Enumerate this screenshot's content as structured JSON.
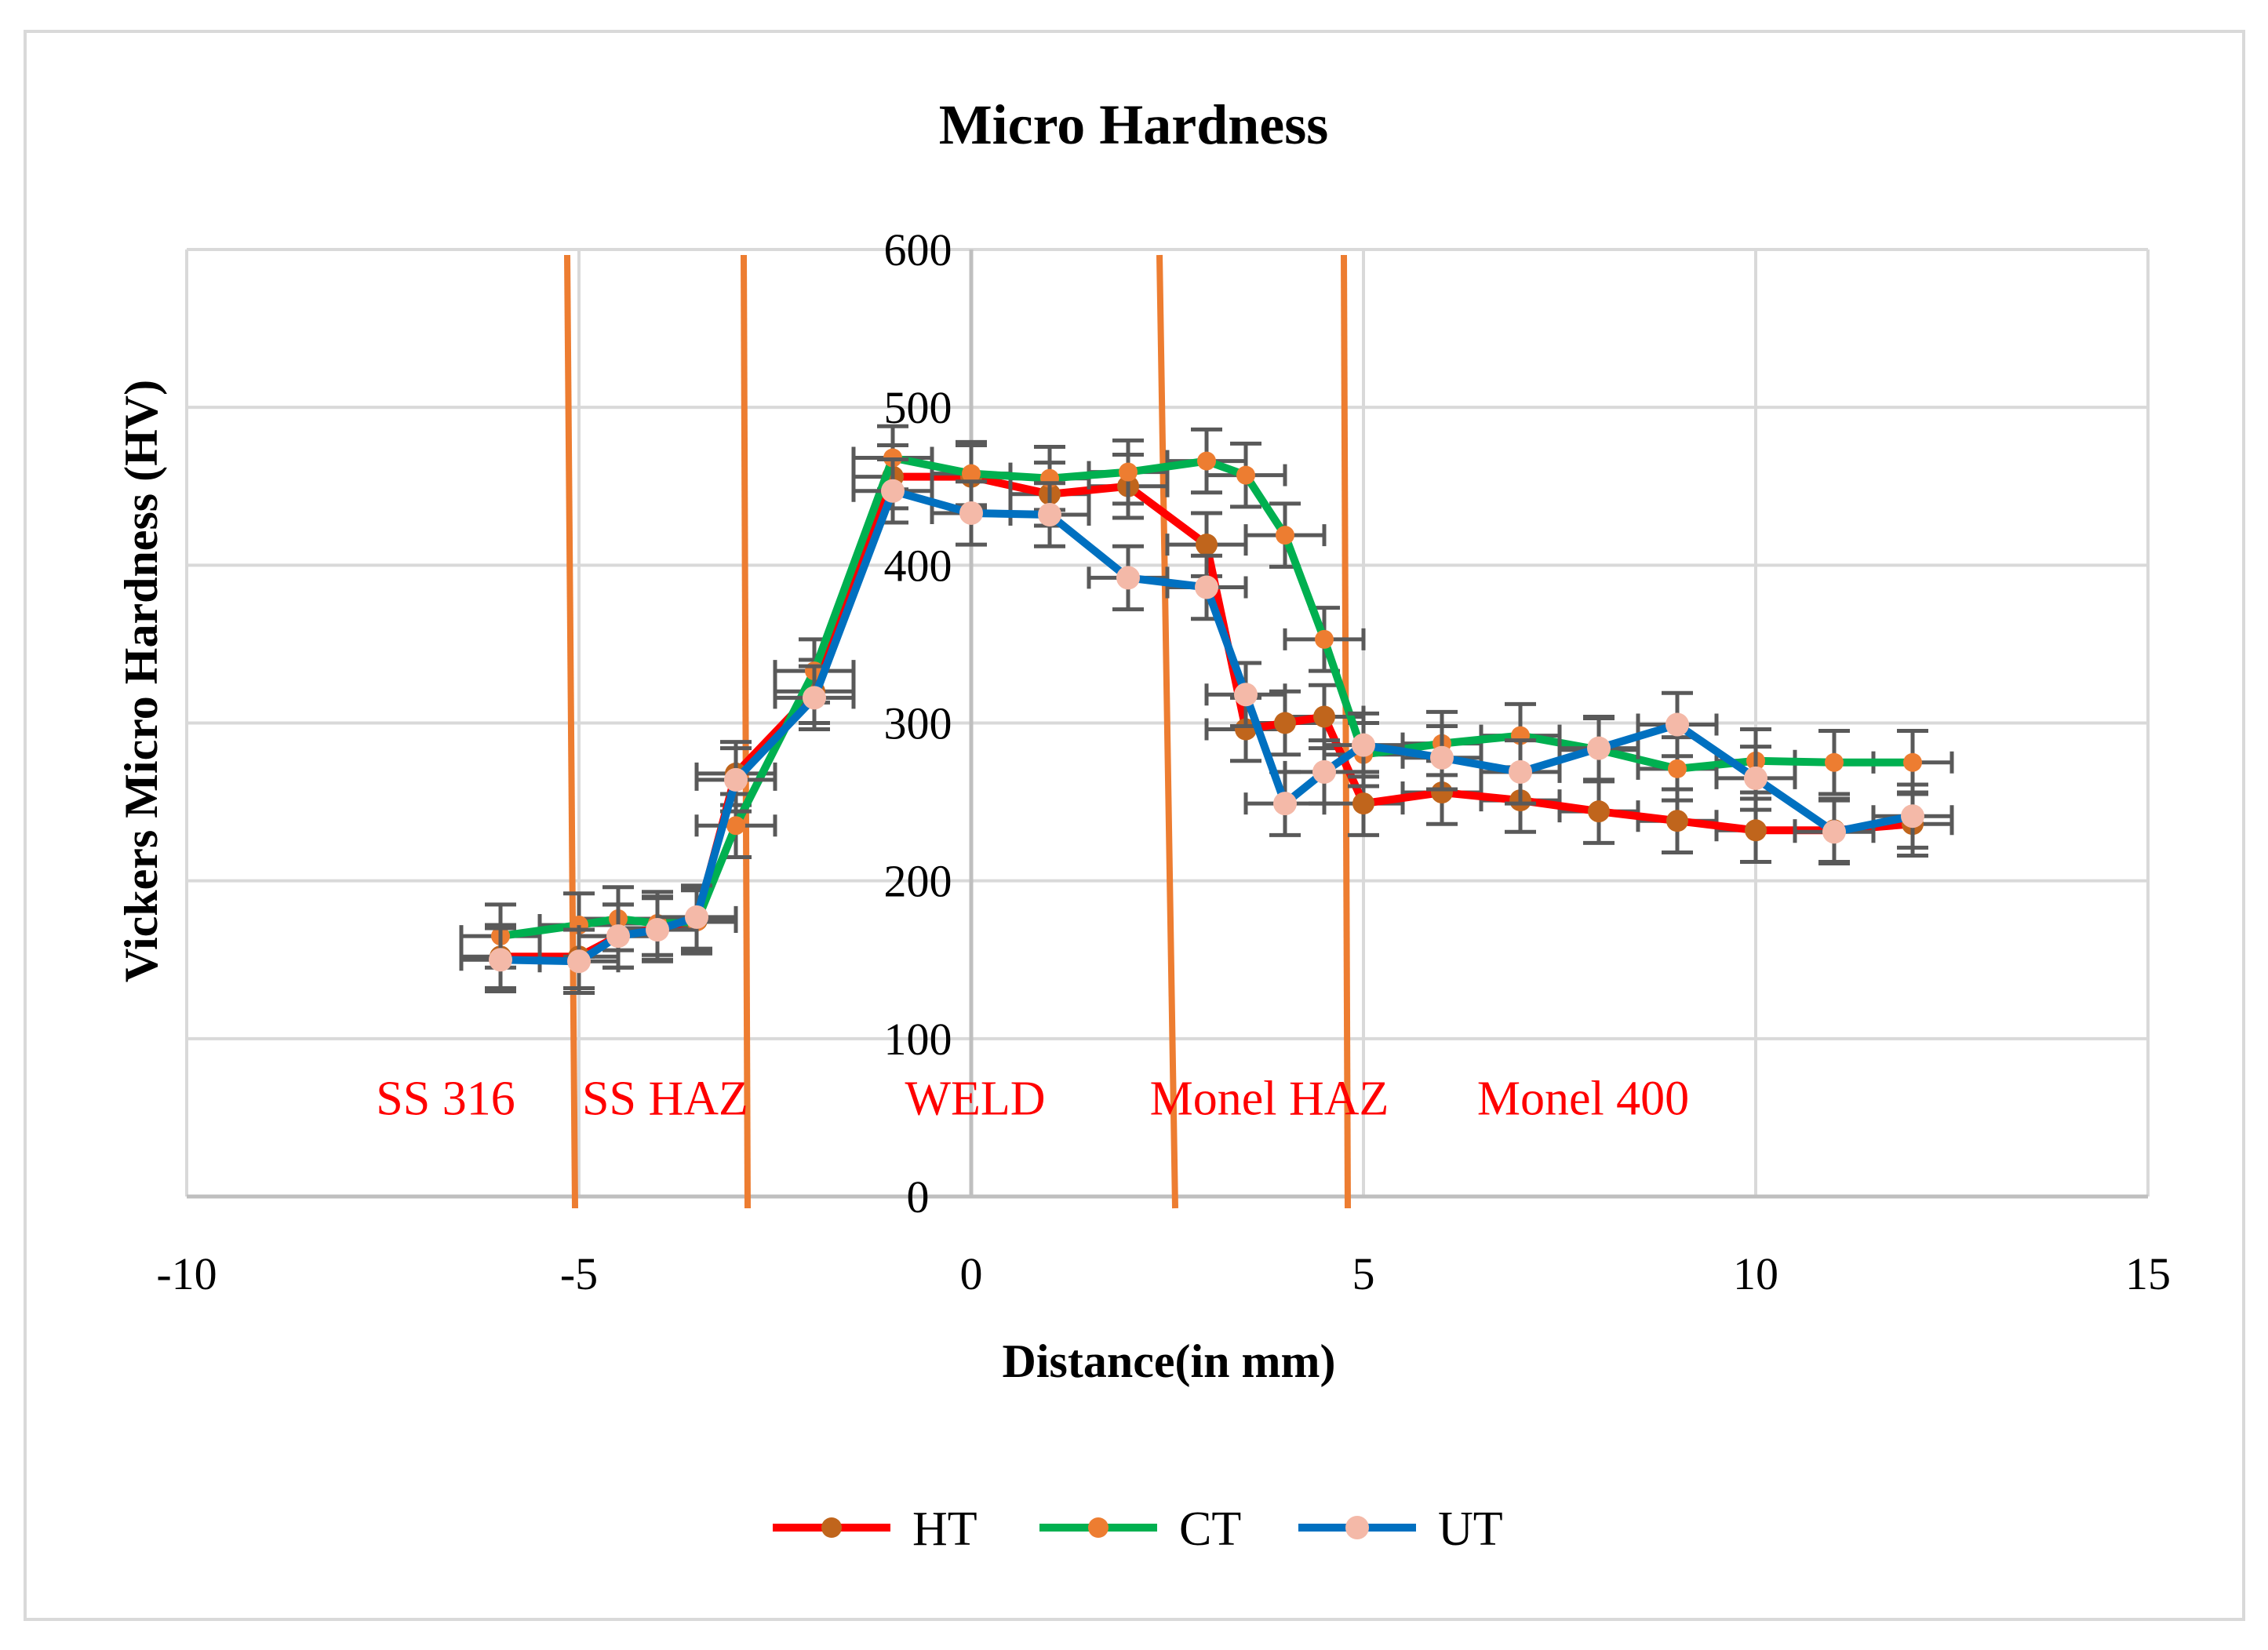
{
  "chart_data": {
    "type": "scatter",
    "title": "Micro Hardness",
    "xlabel": "Distance(in mm)",
    "ylabel": "Vickers Micro Hardness (HV)",
    "xlim": [
      -10,
      15
    ],
    "ylim": [
      0,
      600
    ],
    "x_ticks": [
      -10,
      -5,
      0,
      5,
      10,
      15
    ],
    "y_ticks": [
      0,
      100,
      200,
      300,
      400,
      500,
      600
    ],
    "x_tick_labels": [
      "-10",
      "-5",
      "0",
      "5",
      "10",
      "15"
    ],
    "y_tick_labels": [
      "0",
      "100",
      "200",
      "300",
      "400",
      "500",
      "600"
    ],
    "grid": true,
    "legend_position": "bottom",
    "error_bar": 20,
    "zone_labels": [
      {
        "text": "SS 316",
        "x": -6.7,
        "y": 62
      },
      {
        "text": "SS HAZ",
        "x": -3.9,
        "y": 62
      },
      {
        "text": "WELD",
        "x": 0.05,
        "y": 62
      },
      {
        "text": "Monel HAZ",
        "x": 3.8,
        "y": 62
      },
      {
        "text": "Monel 400",
        "x": 7.8,
        "y": 62
      }
    ],
    "zone_lines": [
      {
        "x_top": -5.15,
        "x_bottom": -5.05
      },
      {
        "x_top": -2.9,
        "x_bottom": -2.85
      },
      {
        "x_top": 2.4,
        "x_bottom": 2.6
      },
      {
        "x_top": 4.75,
        "x_bottom": 4.8
      }
    ],
    "series": [
      {
        "name": "HT",
        "line_color": "#ff0000",
        "marker_color": "#c0651c",
        "x": [
          -6,
          -5,
          -4.5,
          -4,
          -3.5,
          -3,
          -2,
          -1,
          0,
          1,
          2,
          3,
          3.5,
          4,
          4.5,
          5,
          6,
          7,
          8,
          9,
          10,
          11,
          12
        ],
        "y": [
          152,
          152,
          165,
          170,
          175,
          268,
          320,
          456,
          456,
          445,
          450,
          413,
          296,
          300,
          304,
          249,
          256,
          251,
          244,
          238,
          232,
          232,
          236
        ]
      },
      {
        "name": "CT",
        "line_color": "#00b050",
        "marker_color": "#ed7d31",
        "x": [
          -6,
          -5,
          -4.5,
          -4,
          -3.5,
          -3,
          -2,
          -1,
          0,
          1,
          2,
          3,
          3.5,
          4,
          4.5,
          5,
          6,
          7,
          8,
          9,
          10,
          11,
          12
        ],
        "y": [
          165,
          172,
          176,
          173,
          174,
          235,
          333,
          468,
          458,
          455,
          459,
          466,
          457,
          419,
          353,
          280,
          287,
          292,
          283,
          271,
          276,
          275,
          275
        ]
      },
      {
        "name": "UT",
        "line_color": "#0070c0",
        "marker_color": "#f4b9a8",
        "x": [
          -6,
          -5,
          -4.5,
          -4,
          -3.5,
          -3,
          -2,
          -1,
          0,
          1,
          2,
          3,
          3.5,
          4,
          4.5,
          5,
          6,
          7,
          8,
          9,
          10,
          11,
          12
        ],
        "y": [
          150,
          149,
          165,
          169,
          177,
          264,
          316,
          447,
          433,
          432,
          392,
          386,
          318,
          249,
          269,
          286,
          278,
          269,
          284,
          299,
          265,
          231,
          241
        ]
      }
    ]
  }
}
